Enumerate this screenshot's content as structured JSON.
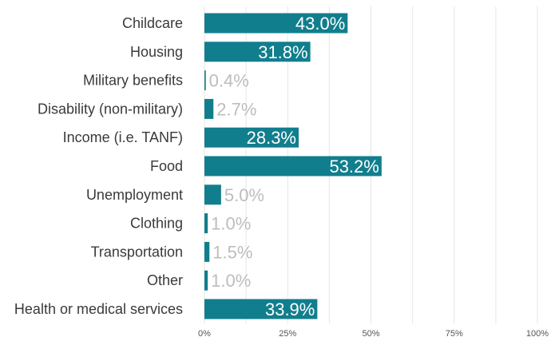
{
  "chart_data": {
    "type": "bar",
    "orientation": "horizontal",
    "categories": [
      "Childcare",
      "Housing",
      "Military benefits",
      "Disability (non-military)",
      "Income (i.e. TANF)",
      "Food",
      "Unemployment",
      "Clothing",
      "Transportation",
      "Other",
      "Health or medical services"
    ],
    "values": [
      43.0,
      31.8,
      0.4,
      2.7,
      28.3,
      53.2,
      5.0,
      1.0,
      1.5,
      1.0,
      33.9
    ],
    "value_labels": [
      "43.0%",
      "31.8%",
      "0.4%",
      "2.7%",
      "28.3%",
      "53.2%",
      "5.0%",
      "1.0%",
      "1.5%",
      "1.0%",
      "33.9%"
    ],
    "x_ticks": [
      "0%",
      "25%",
      "50%",
      "75%",
      "100%"
    ],
    "xlim": [
      0,
      100
    ],
    "grid": true,
    "title": "",
    "xlabel": "",
    "ylabel": "",
    "colors": {
      "bar": "#117e8d",
      "label_inside": "#ffffff",
      "label_outside": "#bdbdbd"
    }
  }
}
